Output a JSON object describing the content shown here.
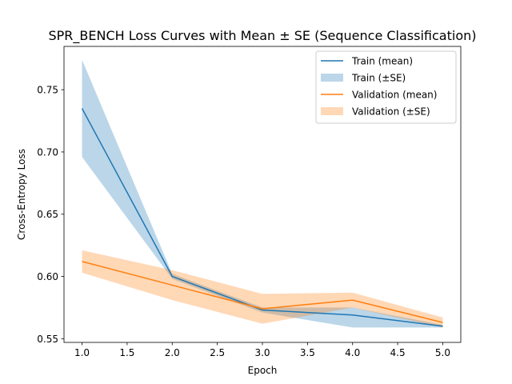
{
  "chart_data": {
    "type": "line",
    "title": "SPR_BENCH Loss Curves with Mean ± SE (Sequence Classification)",
    "xlabel": "Epoch",
    "ylabel": "Cross-Entropy Loss",
    "xlim": [
      0.8,
      5.2
    ],
    "ylim": [
      0.547,
      0.7848
    ],
    "x": [
      1,
      2,
      3,
      4,
      5
    ],
    "xticks": [
      1.0,
      1.5,
      2.0,
      2.5,
      3.0,
      3.5,
      4.0,
      4.5,
      5.0
    ],
    "xtick_labels": [
      "1.0",
      "1.5",
      "2.0",
      "2.5",
      "3.0",
      "3.5",
      "4.0",
      "4.5",
      "5.0"
    ],
    "yticks": [
      0.55,
      0.6,
      0.65,
      0.7,
      0.75
    ],
    "ytick_labels": [
      "0.55",
      "0.60",
      "0.65",
      "0.70",
      "0.75"
    ],
    "grid": false,
    "legend_position": "top-right",
    "series": [
      {
        "name": "Train (mean)",
        "band_name": "Train (±SE)",
        "color": "#1f77b4",
        "band_color": "#1f77b4",
        "band_opacity": 0.3,
        "mean": [
          0.735,
          0.6,
          0.573,
          0.569,
          0.56
        ],
        "lower": [
          0.696,
          0.598,
          0.571,
          0.559,
          0.559
        ],
        "upper": [
          0.774,
          0.602,
          0.575,
          0.575,
          0.561
        ]
      },
      {
        "name": "Validation (mean)",
        "band_name": "Validation (±SE)",
        "color": "#ff7f0e",
        "band_color": "#ff7f0e",
        "band_opacity": 0.3,
        "mean": [
          0.612,
          0.593,
          0.574,
          0.581,
          0.563
        ],
        "lower": [
          0.603,
          0.581,
          0.562,
          0.575,
          0.559
        ],
        "upper": [
          0.621,
          0.605,
          0.586,
          0.587,
          0.567
        ]
      }
    ]
  }
}
